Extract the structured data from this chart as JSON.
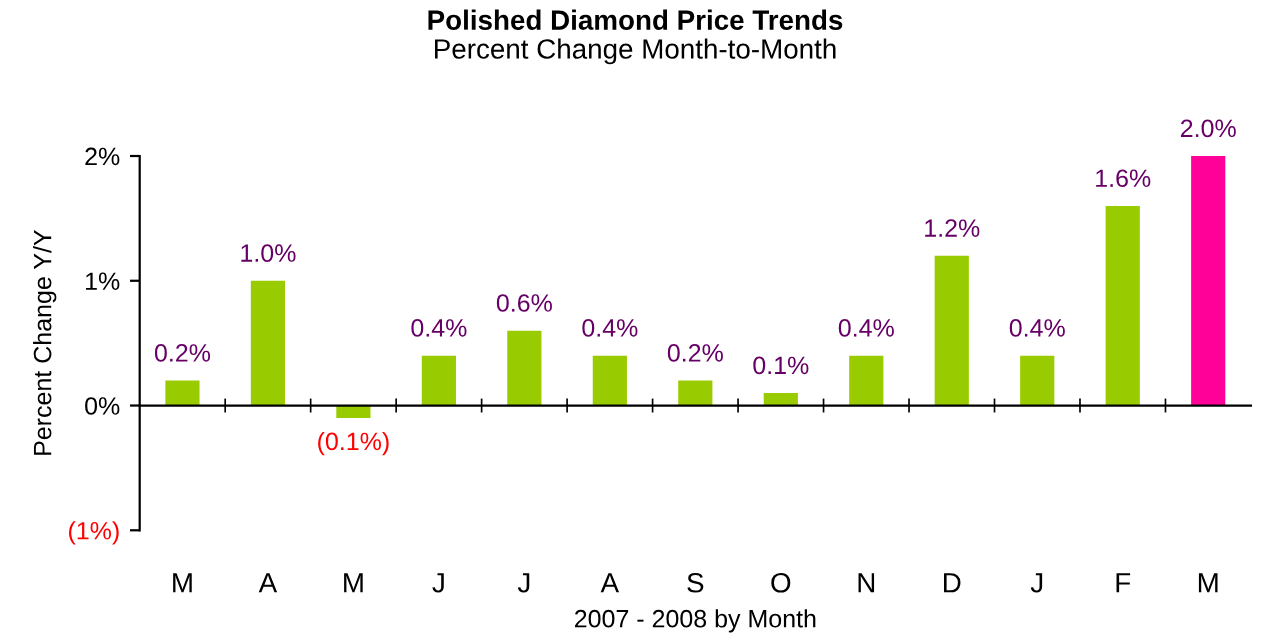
{
  "chart_data": {
    "type": "bar",
    "title": "Polished Diamond Price Trends",
    "subtitle": "Percent Change Month-to-Month",
    "xlabel": "2007 - 2008 by Month",
    "ylabel": "Percent Change Y/Y",
    "categories": [
      "M",
      "A",
      "M",
      "J",
      "J",
      "A",
      "S",
      "O",
      "N",
      "D",
      "J",
      "F",
      "M"
    ],
    "values": [
      0.2,
      1.0,
      -0.1,
      0.4,
      0.6,
      0.4,
      0.2,
      0.1,
      0.4,
      1.2,
      0.4,
      1.6,
      2.0
    ],
    "colors": [
      "#99cc00",
      "#99cc00",
      "#99cc00",
      "#99cc00",
      "#99cc00",
      "#99cc00",
      "#99cc00",
      "#99cc00",
      "#99cc00",
      "#99cc00",
      "#99cc00",
      "#99cc00",
      "#ff0099"
    ],
    "value_labels": [
      "0.2%",
      "1.0%",
      "(0.1%)",
      "0.4%",
      "0.6%",
      "0.4%",
      "0.2%",
      "0.1%",
      "0.4%",
      "1.2%",
      "0.4%",
      "1.6%",
      "2.0%"
    ],
    "ylim": [
      -1,
      2
    ],
    "yticks": [
      {
        "value": -1,
        "label": "(1%)"
      },
      {
        "value": 0,
        "label": "0%"
      },
      {
        "value": 1,
        "label": "1%"
      },
      {
        "value": 2,
        "label": "2%"
      }
    ],
    "legend": false
  }
}
